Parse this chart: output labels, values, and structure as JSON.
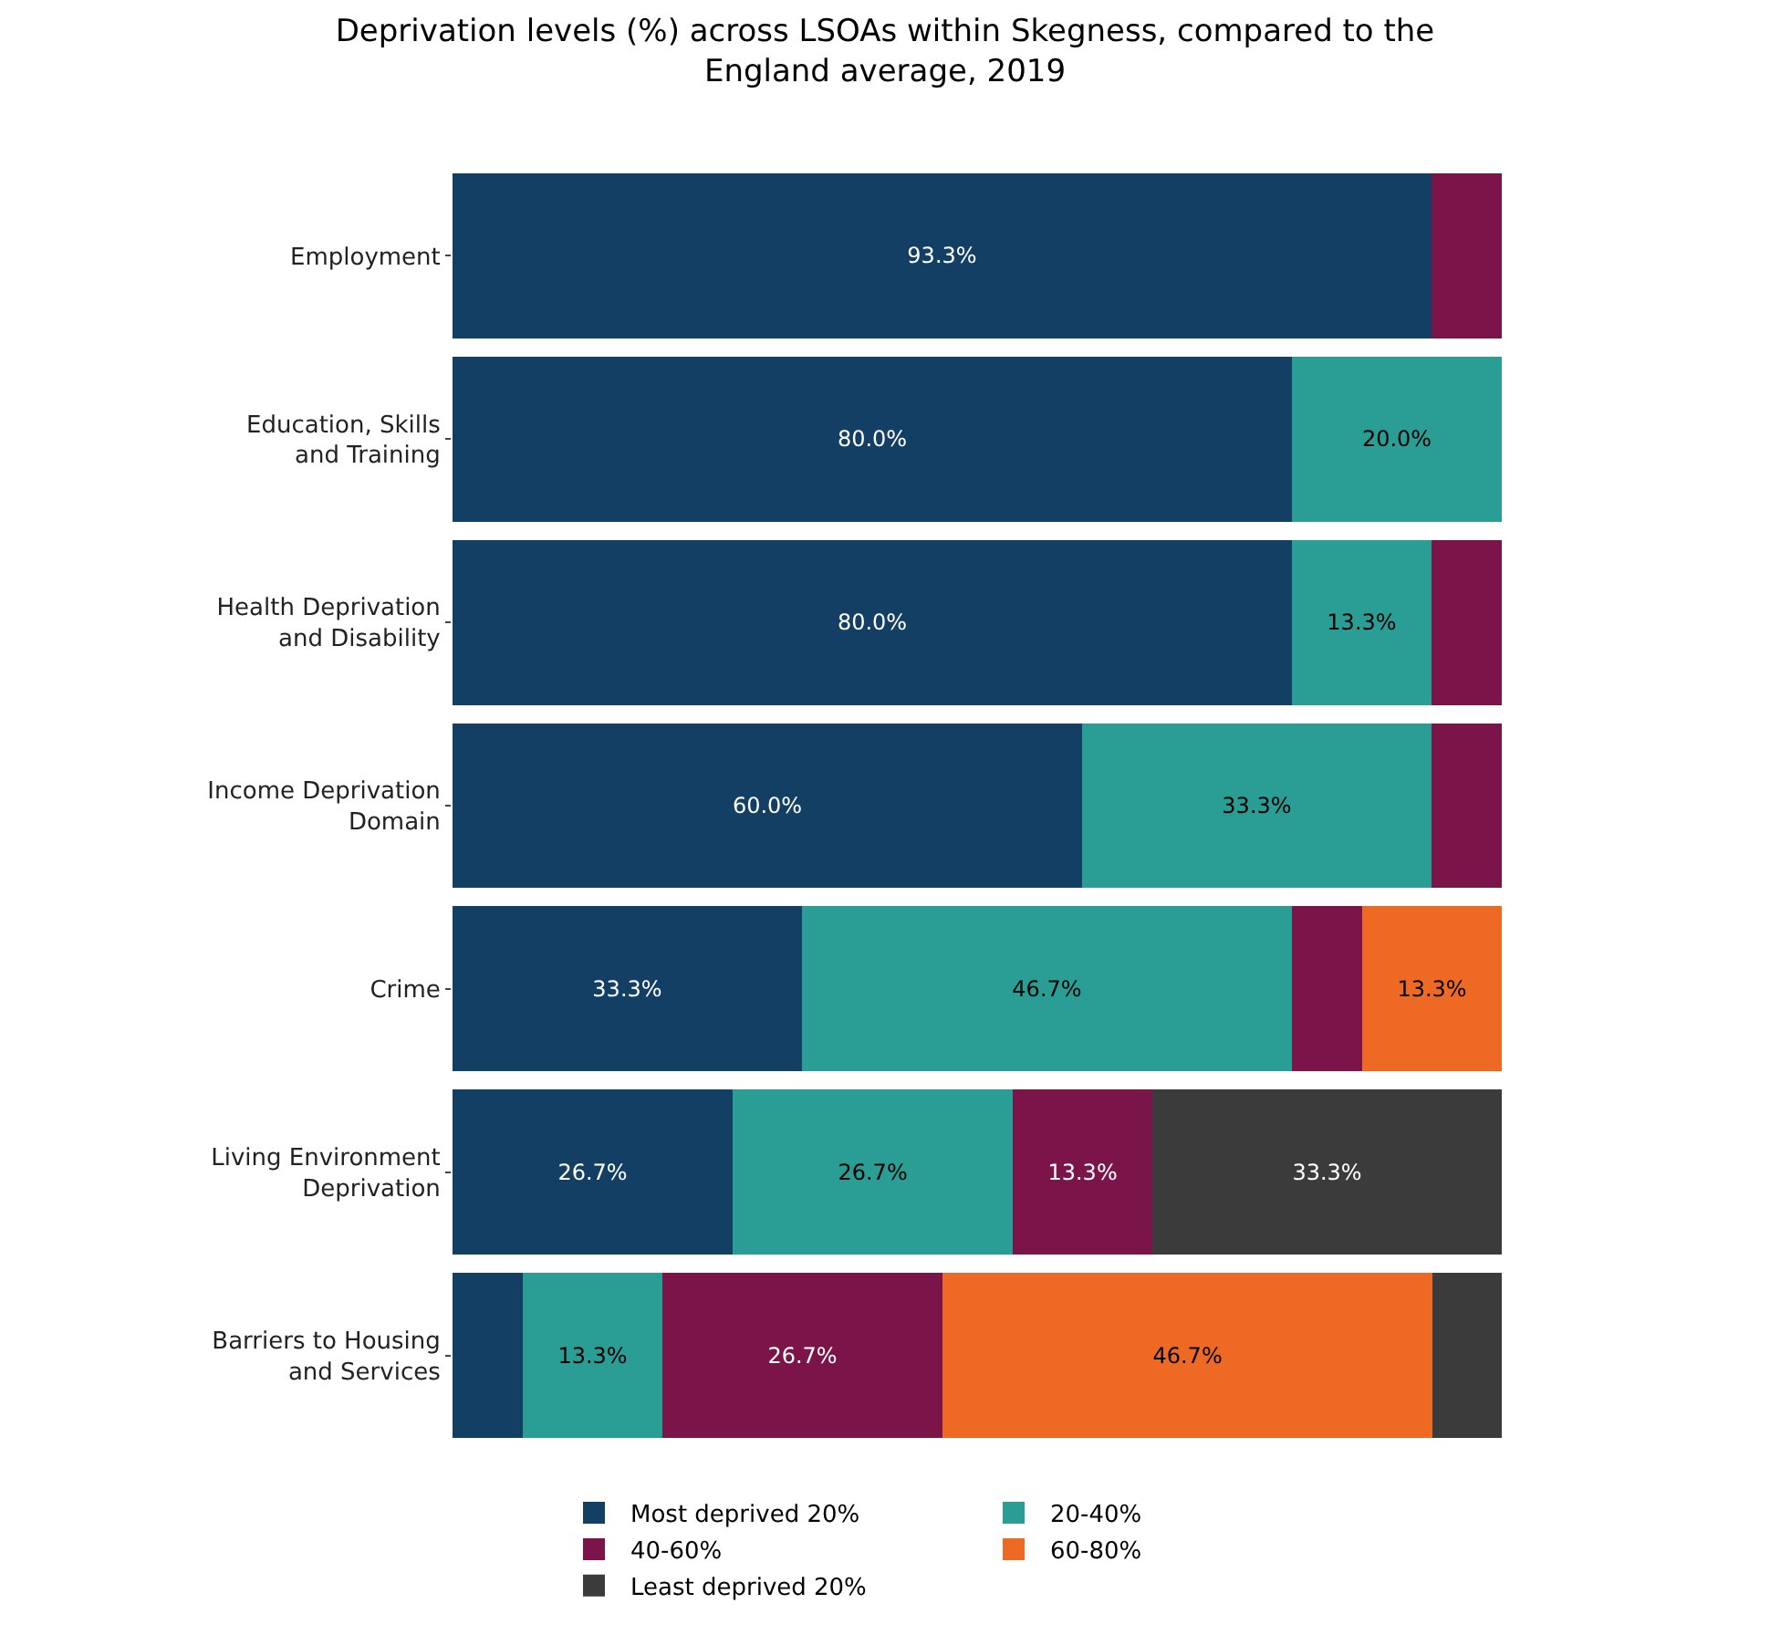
{
  "chart_data": {
    "type": "bar",
    "orientation": "horizontal",
    "stacked": true,
    "title": "Deprivation levels (%) across LSOAs within Skegness, compared to the England average, 2019",
    "categories": [
      "Employment",
      "Education, Skills and Training",
      "Health Deprivation and Disability",
      "Income Deprivation Domain",
      "Crime",
      "Living Environment Deprivation",
      "Barriers to Housing and Services"
    ],
    "xlim": [
      0,
      100
    ],
    "tick_labels": "y",
    "legend": "bottom",
    "series": [
      {
        "name": "Most deprived 20%",
        "color": "#123f63",
        "values": [
          93.3,
          80.0,
          80.0,
          60.0,
          33.3,
          26.7,
          6.7
        ],
        "value_labels": [
          "93.3%",
          "80.0%",
          "80.0%",
          "60.0%",
          "33.3%",
          "26.7%",
          null
        ]
      },
      {
        "name": "20-40%",
        "color": "#2a9d95",
        "values": [
          null,
          20.0,
          13.3,
          33.3,
          46.7,
          26.7,
          13.3
        ],
        "value_labels": [
          null,
          "20.0%",
          "13.3%",
          "33.3%",
          "46.7%",
          "26.7%",
          "13.3%"
        ]
      },
      {
        "name": "40-60%",
        "color": "#7a1449",
        "values": [
          6.7,
          null,
          6.7,
          6.7,
          6.7,
          13.3,
          26.7
        ],
        "value_labels": [
          null,
          null,
          null,
          null,
          null,
          "13.3%",
          "26.7%"
        ]
      },
      {
        "name": "60-80%",
        "color": "#ee6a24",
        "values": [
          null,
          null,
          null,
          null,
          13.3,
          null,
          46.7
        ],
        "value_labels": [
          null,
          null,
          null,
          null,
          "13.3%",
          null,
          "46.7%"
        ]
      },
      {
        "name": "Least deprived 20%",
        "color": "#3b3b3b",
        "values": [
          null,
          null,
          null,
          null,
          null,
          33.3,
          6.7
        ],
        "value_labels": [
          null,
          null,
          null,
          null,
          null,
          "33.3%",
          null
        ]
      }
    ]
  }
}
